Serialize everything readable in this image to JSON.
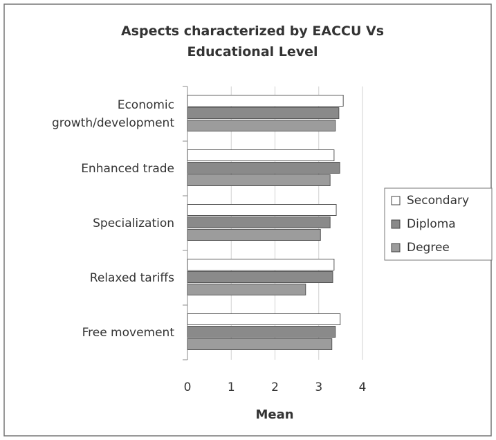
{
  "chart_data": {
    "type": "hbar",
    "title": "Aspects characterized by EACCU Vs Educational Level",
    "xlabel": "Mean",
    "categories": [
      "Economic growth/development",
      "Enhanced trade",
      "Specialization",
      "Relaxed tariffs",
      "Free movement"
    ],
    "series": [
      {
        "name": "Secondary",
        "color": "#ffffff",
        "values": [
          3.56,
          3.35,
          3.4,
          3.35,
          3.49
        ]
      },
      {
        "name": "Diploma",
        "color": "#8a8a8a",
        "values": [
          3.46,
          3.48,
          3.26,
          3.32,
          3.38
        ]
      },
      {
        "name": "Degree",
        "color": "#9c9c9c",
        "values": [
          3.38,
          3.26,
          3.04,
          2.7,
          3.3
        ]
      }
    ],
    "xlim": [
      0,
      4
    ],
    "xticks": [
      0,
      1,
      2,
      3,
      4
    ],
    "grid": true,
    "legend": "right"
  }
}
